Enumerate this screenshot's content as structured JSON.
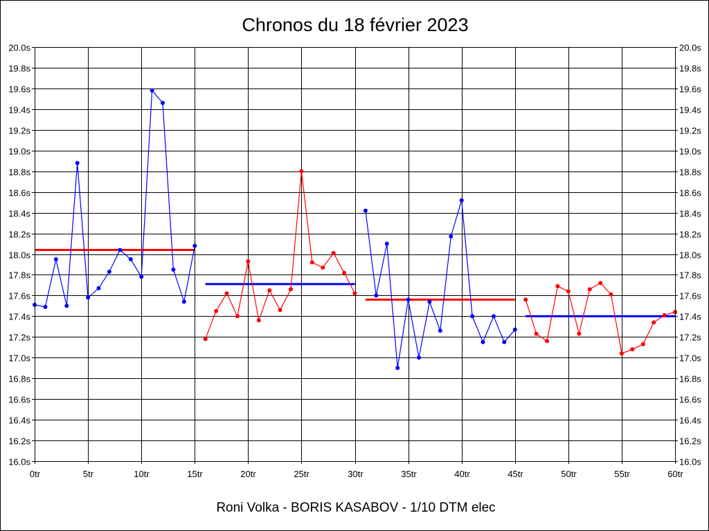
{
  "chart_data": {
    "type": "line",
    "title": "Chronos du 18 février 2023",
    "subtitle": "Roni Volka - BORIS KASABOV - 1/10 DTM elec",
    "xlabel": "",
    "ylabel": "",
    "xlim": [
      0,
      60
    ],
    "ylim": [
      16.0,
      20.0
    ],
    "x_ticks": [
      "0tr",
      "5tr",
      "10tr",
      "15tr",
      "20tr",
      "25tr",
      "30tr",
      "35tr",
      "40tr",
      "45tr",
      "50tr",
      "55tr",
      "60tr"
    ],
    "y_ticks": [
      "16.0s",
      "16.2s",
      "16.4s",
      "16.6s",
      "16.8s",
      "17.0s",
      "17.2s",
      "17.4s",
      "17.6s",
      "17.8s",
      "18.0s",
      "18.2s",
      "18.4s",
      "18.6s",
      "18.8s",
      "19.0s",
      "19.2s",
      "19.4s",
      "19.6s",
      "19.8s",
      "20.0s"
    ],
    "grid": true,
    "series": [
      {
        "color": "#0000ff",
        "x": [
          0,
          1,
          2,
          3,
          4,
          5,
          6,
          7,
          8,
          9,
          10,
          11,
          12,
          13,
          14,
          15
        ],
        "values": [
          17.51,
          17.49,
          17.95,
          17.5,
          18.88,
          17.58,
          17.67,
          17.83,
          18.04,
          17.95,
          17.78,
          19.58,
          19.46,
          17.85,
          17.54,
          18.08
        ],
        "average": 18.04,
        "average_color": "#ff0000",
        "average_range": [
          0,
          15
        ]
      },
      {
        "color": "#ff0000",
        "x": [
          16,
          17,
          18,
          19,
          20,
          21,
          22,
          23,
          24,
          25,
          26,
          27,
          28,
          29,
          30
        ],
        "values": [
          17.18,
          17.45,
          17.62,
          17.4,
          17.93,
          17.36,
          17.65,
          17.46,
          17.66,
          18.8,
          17.92,
          17.87,
          18.01,
          17.82,
          17.62
        ],
        "average": 17.71,
        "average_color": "#0000ff",
        "average_range": [
          16,
          30
        ]
      },
      {
        "color": "#0000ff",
        "x": [
          31,
          32,
          33,
          34,
          35,
          36,
          37,
          38,
          39,
          40,
          41,
          42,
          43,
          44,
          45
        ],
        "values": [
          18.42,
          17.6,
          18.1,
          16.9,
          17.56,
          17.0,
          17.54,
          17.26,
          18.17,
          18.52,
          17.4,
          17.15,
          17.4,
          17.15,
          17.27
        ],
        "average": 17.56,
        "average_color": "#ff0000",
        "average_range": [
          31,
          45
        ]
      },
      {
        "color": "#ff0000",
        "x": [
          46,
          47,
          48,
          49,
          50,
          51,
          52,
          53,
          54,
          55,
          56,
          57,
          58,
          59,
          60
        ],
        "values": [
          17.56,
          17.23,
          17.16,
          17.69,
          17.64,
          17.23,
          17.66,
          17.72,
          17.61,
          17.04,
          17.08,
          17.13,
          17.34,
          17.41,
          17.44
        ],
        "average": 17.4,
        "average_color": "#0000ff",
        "average_range": [
          46,
          60
        ]
      }
    ]
  }
}
